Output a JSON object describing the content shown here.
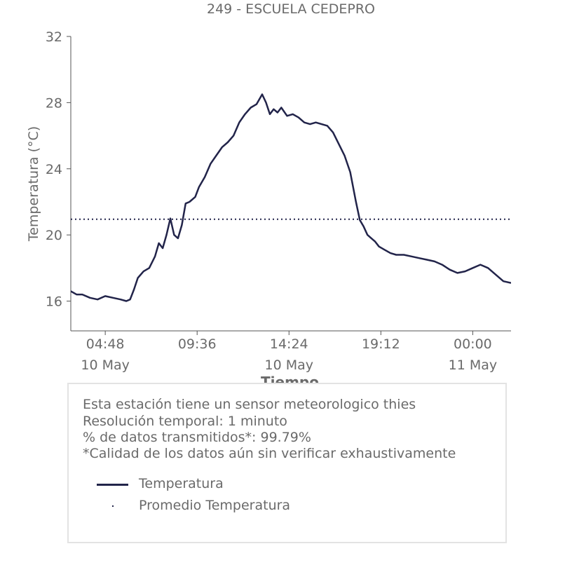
{
  "chart_data": {
    "type": "line",
    "title": "249 - ESCUELA CEDEPRO",
    "xlabel": "Tiempo",
    "ylabel": "Temperatura (°C)",
    "ylim": [
      14.2,
      32
    ],
    "yticks": [
      16,
      20,
      24,
      28,
      32
    ],
    "xlim": [
      3.0,
      26.0
    ],
    "xticks": [
      {
        "t": 4.8,
        "time": "04:48",
        "date": "10 May"
      },
      {
        "t": 9.6,
        "time": "09:36",
        "date": ""
      },
      {
        "t": 14.4,
        "time": "14:24",
        "date": "10 May"
      },
      {
        "t": 19.2,
        "time": "19:12",
        "date": ""
      },
      {
        "t": 24.0,
        "time": "00:00",
        "date": "11 May"
      }
    ],
    "x_unit": "hours since 00:00 10 May",
    "series": [
      {
        "name": "Temperatura",
        "color": "#22244a",
        "style": "solid",
        "x": [
          2.0,
          2.3,
          2.6,
          3.0,
          3.3,
          3.6,
          4.0,
          4.4,
          4.8,
          5.2,
          5.6,
          5.9,
          6.1,
          6.3,
          6.5,
          6.8,
          7.1,
          7.4,
          7.6,
          7.8,
          8.0,
          8.2,
          8.4,
          8.6,
          8.8,
          9.0,
          9.2,
          9.5,
          9.7,
          10.0,
          10.3,
          10.6,
          10.9,
          11.2,
          11.5,
          11.8,
          12.1,
          12.4,
          12.7,
          13.0,
          13.2,
          13.4,
          13.6,
          13.8,
          14.0,
          14.3,
          14.6,
          14.9,
          15.2,
          15.5,
          15.8,
          16.1,
          16.4,
          16.7,
          17.0,
          17.3,
          17.6,
          17.9,
          18.1,
          18.3,
          18.5,
          18.7,
          18.9,
          19.1,
          19.4,
          19.7,
          20.0,
          20.4,
          20.8,
          21.2,
          21.6,
          22.0,
          22.4,
          22.8,
          23.2,
          23.6,
          24.0,
          24.4,
          24.8,
          25.2,
          25.6,
          26.0
        ],
        "values": [
          17.0,
          16.7,
          16.5,
          16.6,
          16.4,
          16.4,
          16.2,
          16.1,
          16.3,
          16.2,
          16.1,
          16.0,
          16.1,
          16.7,
          17.4,
          17.8,
          18.0,
          18.7,
          19.5,
          19.2,
          20.0,
          21.0,
          20.0,
          19.8,
          20.6,
          21.9,
          22.0,
          22.3,
          22.9,
          23.5,
          24.3,
          24.8,
          25.3,
          25.6,
          26.0,
          26.8,
          27.3,
          27.7,
          27.9,
          28.5,
          28.0,
          27.3,
          27.6,
          27.4,
          27.7,
          27.2,
          27.3,
          27.1,
          26.8,
          26.7,
          26.8,
          26.7,
          26.6,
          26.2,
          25.5,
          24.8,
          23.8,
          22.0,
          20.9,
          20.5,
          20.0,
          19.8,
          19.6,
          19.3,
          19.1,
          18.9,
          18.8,
          18.8,
          18.7,
          18.6,
          18.5,
          18.4,
          18.2,
          17.9,
          17.7,
          17.8,
          18.0,
          18.2,
          18.0,
          17.6,
          17.2,
          17.1
        ]
      },
      {
        "name": "Promedio Temperatura",
        "color": "#22244a",
        "style": "dotted",
        "x": [
          3.0,
          26.0
        ],
        "values": [
          20.95,
          20.95
        ]
      }
    ]
  },
  "notes": [
    "Esta estación tiene un sensor meteorologico thies",
    "Resolución temporal: 1 minuto",
    "% de datos transmitidos*: 99.79%",
    "*Calidad de los datos aún sin verificar exhaustivamente"
  ],
  "legend": {
    "solid_label": "Temperatura",
    "dotted_label": "Promedio Temperatura"
  },
  "colors": {
    "line": "#22244a",
    "text": "#6a6a6a",
    "axis": "#555555"
  }
}
